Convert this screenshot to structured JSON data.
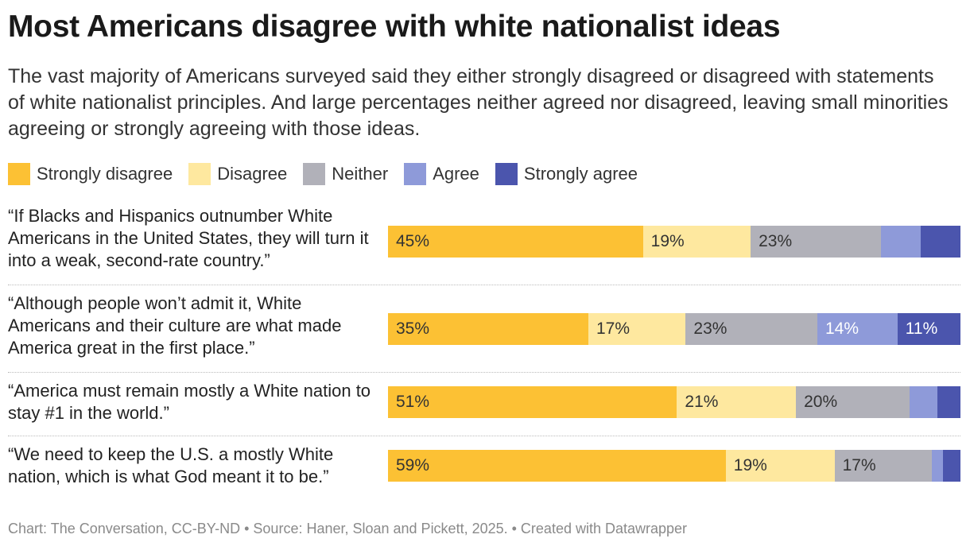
{
  "chart_data": {
    "type": "bar",
    "orientation": "horizontal",
    "stacked": true,
    "normalized": true,
    "title": "Most Americans disagree with white nationalist ideas",
    "subtitle": "The vast majority of Americans surveyed said they either strongly disagreed or disagreed with statements of white nationalist principles. And large percentages neither agreed nor disagreed, leaving small minorities agreeing or strongly agreeing with those ideas.",
    "legend_position": "top-left",
    "grid": false,
    "xlim": [
      0,
      100
    ],
    "categories": [
      "“If Blacks and Hispanics outnumber White Americans in the United States, they will turn it into a weak, second-rate country.”",
      "“Although people won’t admit it, White Americans and their culture are what made America great in the first place.”",
      "“America must remain mostly a White nation to stay #1 in the world.”",
      "“We need to keep the U.S. a mostly White nation, which is what God meant it to be.”"
    ],
    "series": [
      {
        "name": "Strongly disagree",
        "color": "#fcc134",
        "text_color": "#333333",
        "values": [
          45,
          35,
          51,
          59
        ],
        "labels": [
          "45%",
          "35%",
          "51%",
          "59%"
        ]
      },
      {
        "name": "Disagree",
        "color": "#fee89f",
        "text_color": "#333333",
        "values": [
          19,
          17,
          21,
          19
        ],
        "labels": [
          "19%",
          "17%",
          "21%",
          "19%"
        ]
      },
      {
        "name": "Neither",
        "color": "#b1b1b9",
        "text_color": "#333333",
        "values": [
          23,
          23,
          20,
          17
        ],
        "labels": [
          "23%",
          "23%",
          "20%",
          "17%"
        ]
      },
      {
        "name": "Agree",
        "color": "#8e9ad9",
        "text_color": "#ffffff",
        "values": [
          7,
          14,
          5,
          2
        ],
        "labels": [
          "",
          "14%",
          "",
          ""
        ]
      },
      {
        "name": "Strongly agree",
        "color": "#4b55ad",
        "text_color": "#ffffff",
        "values": [
          7,
          11,
          4,
          3
        ],
        "labels": [
          "",
          "11%",
          "",
          ""
        ]
      }
    ]
  },
  "footer": "Chart: The Conversation, CC-BY-ND • Source: Haner, Sloan and Pickett, 2025. • Created with Datawrapper"
}
